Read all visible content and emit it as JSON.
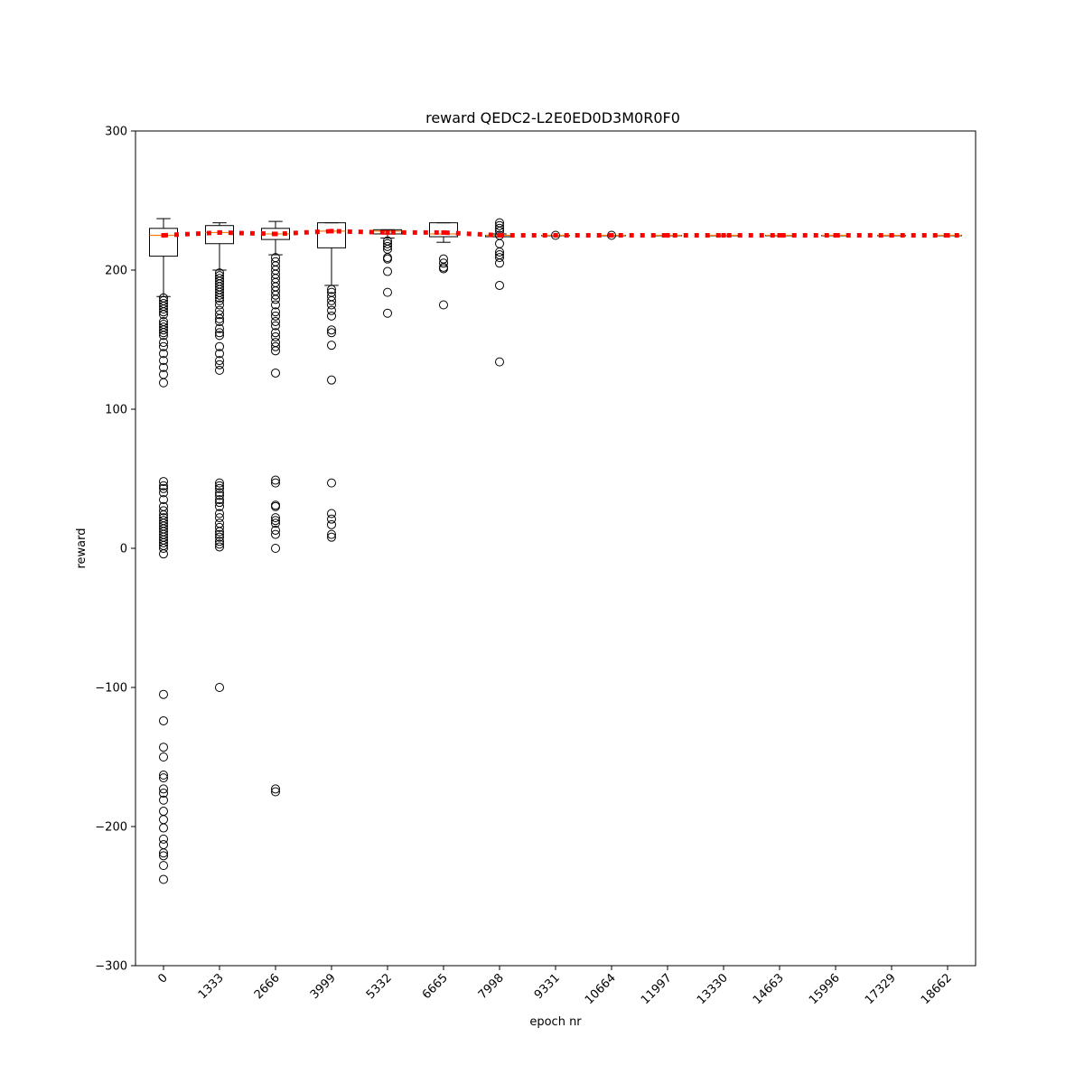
{
  "chart_data": {
    "type": "box",
    "title": "reward QEDC2-L2E0ED0D3M0R0F0",
    "xlabel": "epoch nr",
    "ylabel": "reward",
    "ylim": [
      -300,
      300
    ],
    "yticks": [
      -300,
      -200,
      -100,
      0,
      100,
      200,
      300
    ],
    "ytick_labels": [
      "−300",
      "−200",
      "−100",
      "0",
      "100",
      "200",
      "300"
    ],
    "categories": [
      "0",
      "1333",
      "2666",
      "3999",
      "5332",
      "6665",
      "7998",
      "9331",
      "10664",
      "11997",
      "13330",
      "14663",
      "15996",
      "17329",
      "18662"
    ],
    "mean_line_color": "#ff0000",
    "median_color": "#ff7f0e",
    "boxes": [
      {
        "q1": 210,
        "median": 225,
        "q3": 230,
        "whisker_low": 181,
        "whisker_high": 237,
        "mean": 225,
        "outliers": [
          180,
          178,
          176,
          174,
          172,
          170,
          168,
          163,
          161,
          159,
          157,
          155,
          153,
          148,
          145,
          140,
          135,
          130,
          125,
          119,
          48,
          45,
          43,
          40,
          35,
          30,
          27,
          24,
          22,
          20,
          18,
          16,
          14,
          12,
          10,
          8,
          6,
          4,
          2,
          0,
          -4,
          -105,
          -124,
          -143,
          -150,
          -163,
          -165,
          -173,
          -176,
          -181,
          -189,
          -195,
          -201,
          -209,
          -213,
          -219,
          -221,
          -228,
          -238
        ]
      },
      {
        "q1": 219,
        "median": 227,
        "q3": 232,
        "whisker_low": 200,
        "whisker_high": 234,
        "mean": 227,
        "outliers": [
          198,
          196,
          194,
          192,
          190,
          188,
          186,
          184,
          182,
          180,
          178,
          175,
          171,
          168,
          165,
          163,
          158,
          155,
          153,
          145,
          140,
          135,
          132,
          128,
          47,
          45,
          43,
          40,
          38,
          35,
          33,
          30,
          25,
          22,
          18,
          15,
          12,
          10,
          8,
          5,
          3,
          1,
          -100
        ]
      },
      {
        "q1": 222,
        "median": 226,
        "q3": 230,
        "whisker_low": 211,
        "whisker_high": 235,
        "mean": 226,
        "outliers": [
          209,
          206,
          203,
          200,
          197,
          194,
          191,
          188,
          185,
          182,
          179,
          175,
          170,
          167,
          163,
          160,
          155,
          152,
          148,
          145,
          142,
          126,
          49,
          47,
          31,
          30,
          22,
          20,
          18,
          13,
          10,
          0,
          -173,
          -175
        ]
      },
      {
        "q1": 216,
        "median": 228,
        "q3": 234,
        "whisker_low": 189,
        "whisker_high": 234,
        "mean": 228,
        "outliers": [
          186,
          184,
          181,
          178,
          175,
          171,
          167,
          157,
          155,
          146,
          121,
          47,
          25,
          21,
          17,
          10,
          8
        ]
      },
      {
        "q1": 226,
        "median": 228,
        "q3": 229,
        "whisker_low": 223,
        "whisker_high": 229,
        "mean": 227,
        "outliers": [
          221,
          219,
          217,
          215,
          209,
          208,
          199,
          184,
          169
        ]
      },
      {
        "q1": 224,
        "median": 226,
        "q3": 234,
        "whisker_low": 220,
        "whisker_high": 234,
        "mean": 227,
        "outliers": [
          208,
          205,
          202,
          201,
          175
        ]
      },
      {
        "q1": 224,
        "median": 225,
        "q3": 225,
        "whisker_low": 224,
        "whisker_high": 226,
        "mean": 225,
        "outliers": [
          234,
          232,
          230,
          228,
          225,
          219,
          213,
          211,
          209,
          205,
          189,
          134
        ]
      },
      {
        "q1": 225,
        "median": 225,
        "q3": 225,
        "whisker_low": 225,
        "whisker_high": 225,
        "mean": 225,
        "outliers": [
          225
        ]
      },
      {
        "q1": 225,
        "median": 225,
        "q3": 225,
        "whisker_low": 225,
        "whisker_high": 225,
        "mean": 225,
        "outliers": [
          225
        ]
      },
      {
        "q1": 225,
        "median": 225,
        "q3": 225,
        "whisker_low": 225,
        "whisker_high": 225,
        "mean": 225,
        "outliers": []
      },
      {
        "q1": 225,
        "median": 225,
        "q3": 225,
        "whisker_low": 225,
        "whisker_high": 225,
        "mean": 225,
        "outliers": []
      },
      {
        "q1": 225,
        "median": 225,
        "q3": 225,
        "whisker_low": 225,
        "whisker_high": 225,
        "mean": 225,
        "outliers": []
      },
      {
        "q1": 225,
        "median": 225,
        "q3": 225,
        "whisker_low": 225,
        "whisker_high": 225,
        "mean": 225,
        "outliers": []
      },
      {
        "q1": 225,
        "median": 225,
        "q3": 225,
        "whisker_low": 225,
        "whisker_high": 225,
        "mean": 225,
        "outliers": []
      },
      {
        "q1": 225,
        "median": 225,
        "q3": 225,
        "whisker_low": 225,
        "whisker_high": 225,
        "mean": 225,
        "outliers": []
      }
    ],
    "grid": false,
    "legend": "none"
  }
}
